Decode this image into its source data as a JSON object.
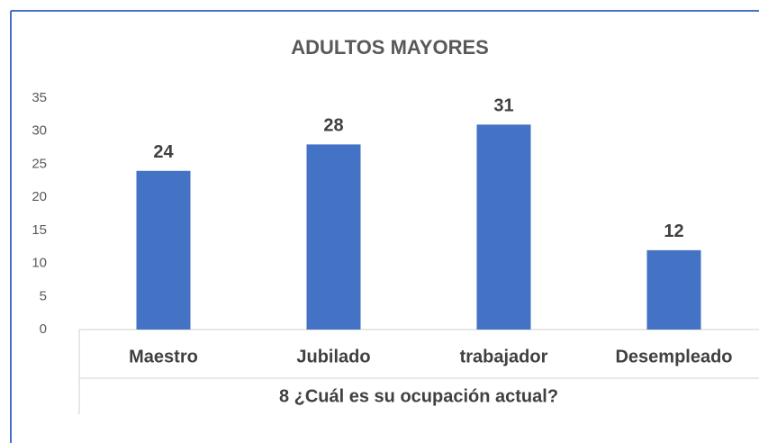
{
  "chart_data": {
    "type": "bar",
    "title": "ADULTOS MAYORES",
    "x_label": "8 ¿Cuál es su ocupación actual?",
    "categories": [
      "Maestro",
      "Jubilado",
      "trabajador",
      "Desempleado"
    ],
    "values": [
      24,
      28,
      31,
      12
    ],
    "color": "#4472c4",
    "ylim": [
      0,
      35
    ],
    "yticks": [
      0,
      5,
      10,
      15,
      20,
      25,
      30,
      35
    ],
    "grid": false
  }
}
